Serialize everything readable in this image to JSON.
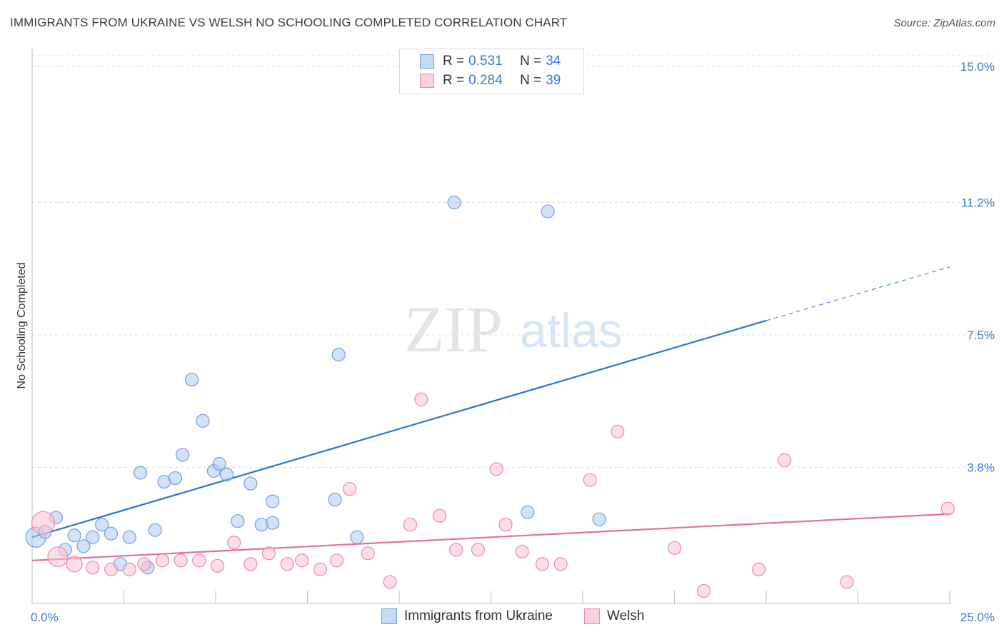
{
  "title": "IMMIGRANTS FROM UKRAINE VS WELSH NO SCHOOLING COMPLETED CORRELATION CHART",
  "source": "Source: ZipAtlas.com",
  "watermark": {
    "zip": "ZIP",
    "atlas": "atlas"
  },
  "colors": {
    "blue_fill": "#aecbf2",
    "blue_stroke": "#6f9fdf",
    "blue_line": "#2f72d4",
    "pink_fill": "#f9c3d2",
    "pink_stroke": "#ec8aa6",
    "pink_line": "#e4709a",
    "axis_text": "#3b78d8",
    "grid": "#dcdcdc"
  },
  "legend": {
    "rows": [
      {
        "r_label": "R =",
        "r_value": "0.531",
        "n_label": "N =",
        "n_value": "34"
      },
      {
        "r_label": "R =",
        "r_value": "0.284",
        "n_label": "N =",
        "n_value": "39"
      }
    ]
  },
  "bottom_legend": [
    "Immigrants from Ukraine",
    "Welsh"
  ],
  "chart_data": {
    "type": "scatter",
    "xlabel": "",
    "ylabel": "No Schooling Completed",
    "xlim": [
      0,
      25
    ],
    "ylim": [
      0,
      15.3
    ],
    "x_tick_labels": [
      "0.0%",
      "25.0%"
    ],
    "y_ticks": [
      3.8,
      7.5,
      11.2,
      15.0
    ],
    "y_tick_labels": [
      "3.8%",
      "7.5%",
      "11.2%",
      "15.0%"
    ],
    "grid": true,
    "series": [
      {
        "name": "Immigrants from Ukraine",
        "points": [
          [
            0.1,
            1.85,
            14
          ],
          [
            0.35,
            2.0,
            9
          ],
          [
            0.65,
            2.4,
            9
          ],
          [
            0.9,
            1.5,
            9
          ],
          [
            1.15,
            1.9,
            9
          ],
          [
            1.4,
            1.6,
            9
          ],
          [
            1.65,
            1.85,
            9
          ],
          [
            1.9,
            2.2,
            9
          ],
          [
            2.15,
            1.95,
            9
          ],
          [
            2.4,
            1.1,
            9
          ],
          [
            2.65,
            1.85,
            9
          ],
          [
            2.95,
            3.65,
            9
          ],
          [
            3.15,
            1.0,
            9
          ],
          [
            3.35,
            2.05,
            9
          ],
          [
            3.6,
            3.4,
            9
          ],
          [
            3.9,
            3.5,
            9
          ],
          [
            4.1,
            4.15,
            9
          ],
          [
            4.35,
            6.25,
            9
          ],
          [
            4.65,
            5.1,
            9
          ],
          [
            4.95,
            3.7,
            9
          ],
          [
            5.1,
            3.9,
            9
          ],
          [
            5.3,
            3.6,
            9
          ],
          [
            5.6,
            2.3,
            9
          ],
          [
            5.95,
            3.35,
            9
          ],
          [
            6.25,
            2.2,
            9
          ],
          [
            6.55,
            2.85,
            9
          ],
          [
            6.55,
            2.25,
            9
          ],
          [
            8.25,
            2.9,
            9
          ],
          [
            8.35,
            6.95,
            9
          ],
          [
            8.85,
            1.85,
            9
          ],
          [
            11.5,
            11.2,
            9
          ],
          [
            13.5,
            2.55,
            9
          ],
          [
            14.05,
            10.95,
            9
          ],
          [
            15.45,
            2.35,
            9
          ]
        ],
        "trend": {
          "x0": 0,
          "y0": 1.85,
          "x1": 20.0,
          "y1": 7.9,
          "dash_x1": 25,
          "dash_y1": 9.4
        }
      },
      {
        "name": "Welsh",
        "points": [
          [
            0.3,
            2.25,
            16
          ],
          [
            0.7,
            1.3,
            14
          ],
          [
            1.15,
            1.1,
            11
          ],
          [
            1.65,
            1.0,
            9
          ],
          [
            2.15,
            0.95,
            9
          ],
          [
            2.65,
            0.95,
            9
          ],
          [
            3.05,
            1.1,
            9
          ],
          [
            3.55,
            1.2,
            9
          ],
          [
            4.05,
            1.2,
            9
          ],
          [
            4.55,
            1.2,
            9
          ],
          [
            5.05,
            1.05,
            9
          ],
          [
            5.5,
            1.7,
            9
          ],
          [
            5.95,
            1.1,
            9
          ],
          [
            6.45,
            1.4,
            9
          ],
          [
            6.95,
            1.1,
            9
          ],
          [
            7.35,
            1.2,
            9
          ],
          [
            7.85,
            0.95,
            9
          ],
          [
            8.3,
            1.2,
            9
          ],
          [
            8.65,
            3.2,
            9
          ],
          [
            9.15,
            1.4,
            9
          ],
          [
            9.75,
            0.6,
            9
          ],
          [
            10.3,
            2.2,
            9
          ],
          [
            10.6,
            5.7,
            9
          ],
          [
            11.1,
            2.45,
            9
          ],
          [
            11.55,
            1.5,
            9
          ],
          [
            12.15,
            1.5,
            9
          ],
          [
            12.65,
            3.75,
            9
          ],
          [
            12.9,
            2.2,
            9
          ],
          [
            13.35,
            1.45,
            9
          ],
          [
            13.9,
            1.1,
            9
          ],
          [
            14.4,
            1.1,
            9
          ],
          [
            15.2,
            3.45,
            9
          ],
          [
            15.95,
            4.8,
            9
          ],
          [
            17.5,
            1.55,
            9
          ],
          [
            18.3,
            0.35,
            9
          ],
          [
            19.8,
            0.95,
            9
          ],
          [
            20.5,
            4.0,
            9
          ],
          [
            22.2,
            0.6,
            9
          ],
          [
            24.95,
            2.65,
            9
          ]
        ],
        "trend": {
          "x0": 0,
          "y0": 1.2,
          "x1": 25,
          "y1": 2.5
        }
      }
    ]
  }
}
